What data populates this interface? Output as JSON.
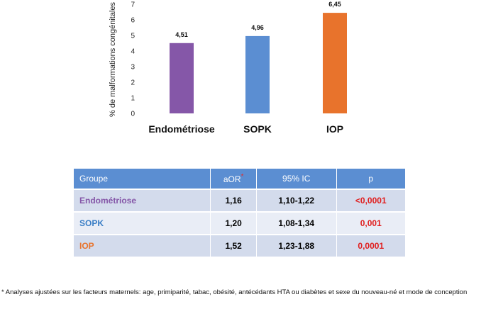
{
  "chart_data": {
    "type": "bar",
    "ylabel": "% de malformations congénitales",
    "ylim": [
      0,
      7
    ],
    "yticks": [
      "0",
      "1",
      "2",
      "3",
      "4",
      "5",
      "6",
      "7"
    ],
    "categories": [
      "Endométriose",
      "SOPK",
      "IOP"
    ],
    "values": [
      4.51,
      4.96,
      6.45
    ],
    "value_labels": [
      "4,51",
      "4,96",
      "6,45"
    ],
    "colors": [
      "#8557a8",
      "#5b8ed2",
      "#e8732c"
    ],
    "grid": false
  },
  "table": {
    "headers": [
      "Groupe",
      "aOR",
      "95% IC",
      "p"
    ],
    "aor_marker": "*",
    "rows": [
      {
        "group": "Endométriose",
        "color": "#8557a8",
        "aor": "1,16",
        "ic": "1,10-1,22",
        "p": "<0,0001"
      },
      {
        "group": "SOPK",
        "color": "#3a7ec6",
        "aor": "1,20",
        "ic": "1,08-1,34",
        "p": "0,001"
      },
      {
        "group": "IOP",
        "color": "#e8732c",
        "aor": "1,52",
        "ic": "1,23-1,88",
        "p": "0,0001"
      }
    ]
  },
  "footnote": "* Analyses ajustées sur les facteurs maternels: age, primiparité, tabac, obésité, antécédants HTA ou diabètes et sexe du nouveau-né et mode de conception"
}
